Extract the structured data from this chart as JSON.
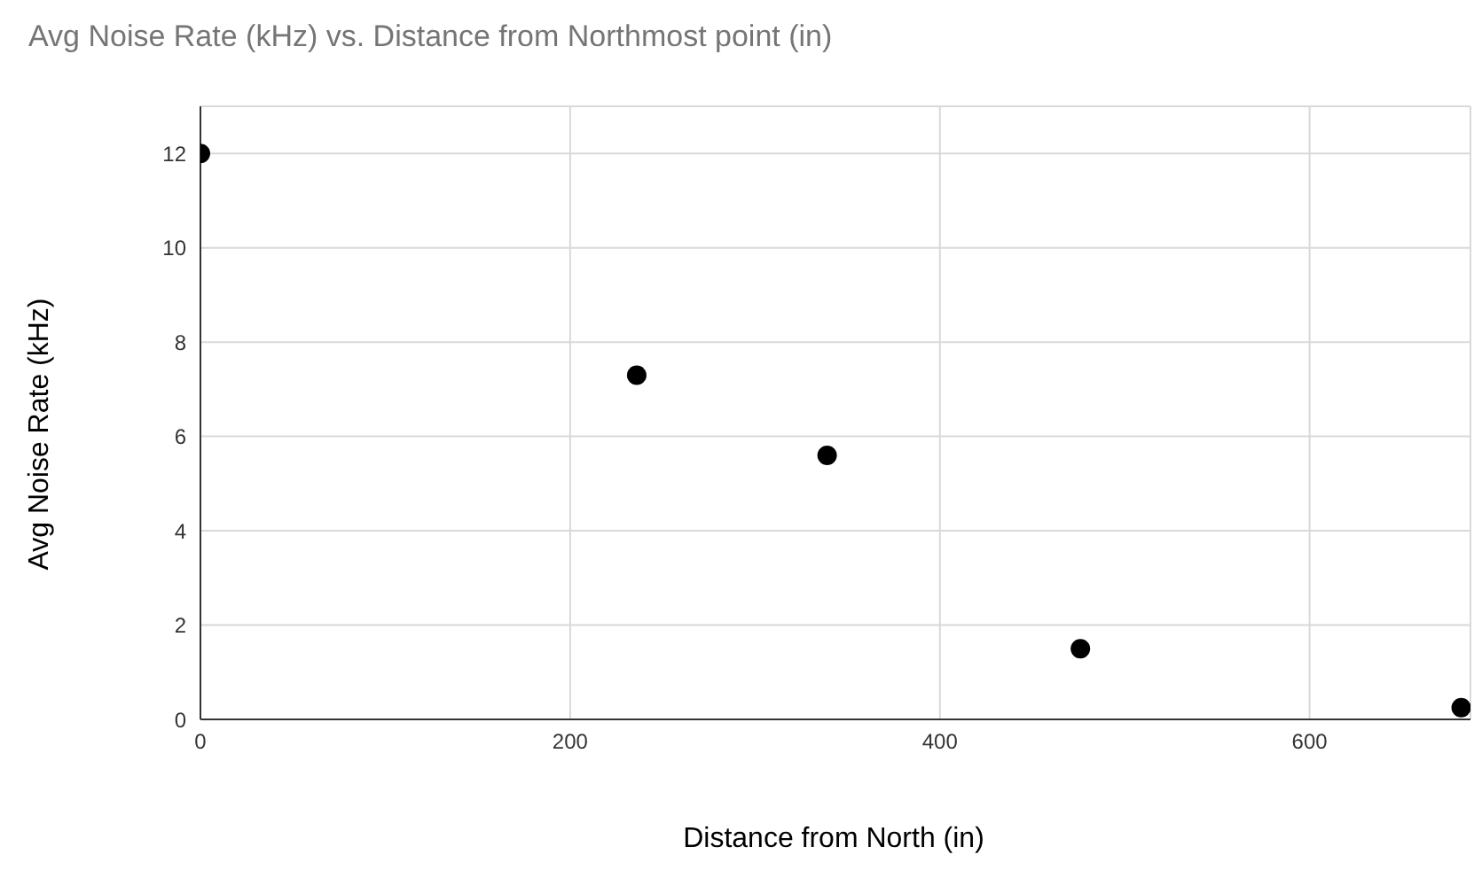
{
  "chart_data": {
    "type": "scatter",
    "title": "Avg Noise Rate (kHz) vs. Distance from Northmost point (in)",
    "xlabel": "Distance from North (in)",
    "ylabel": "Avg Noise Rate (kHz)",
    "x": [
      0,
      236,
      339,
      476,
      682
    ],
    "values": [
      12,
      7.3,
      5.6,
      1.5,
      0.25
    ],
    "color": "#000000",
    "marker": "circle",
    "xlim": [
      0,
      687
    ],
    "xticks": [
      0,
      200,
      400,
      600
    ],
    "ylim": [
      0,
      13
    ],
    "yticks": [
      0,
      2,
      4,
      6,
      8,
      10,
      12
    ],
    "grid": true
  }
}
